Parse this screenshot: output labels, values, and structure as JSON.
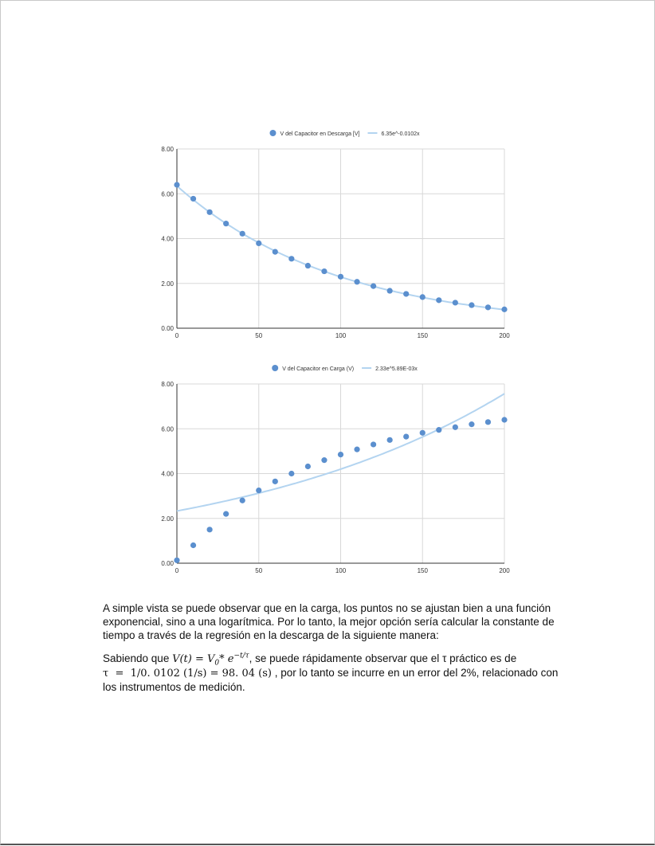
{
  "document": {
    "paragraph_1": "A simple vista se puede observar que en la carga, los puntos no se ajustan bien a una función exponencial, sino a una logarítmica. Por lo tanto, la mejor opción sería calcular la constante de tiempo a través de la regresión en la descarga de la siguiente manera:",
    "paragraph_2": {
      "intro": "Sabiendo que ",
      "formula_lhs": "V(t)",
      "formula_eq": " = ",
      "formula_v": "V",
      "formula_v_sub": "0",
      "formula_mul": "* e",
      "formula_exp": "−t/τ",
      "after_formula": ", se puede rápidamente observar que el ",
      "tau_symbol": "τ",
      "after_tau": " práctico es de",
      "calc": "τ  =  1/0. 0102 (1/s) = 98. 04 (s)",
      "conclusion": " , por lo tanto se incurre en un error del 2%, relacionado con los instrumentos de medición."
    }
  },
  "chart_data": [
    {
      "type": "scatter",
      "legend_position": "top",
      "grid": true,
      "xlim": [
        0,
        200
      ],
      "ylim": [
        0,
        8
      ],
      "x_ticks": [
        "0",
        "50",
        "100",
        "150",
        "200"
      ],
      "y_ticks": [
        "0.00",
        "2.00",
        "4.00",
        "6.00",
        "8.00"
      ],
      "series": [
        {
          "name": "V del Capacitor en Descarga [V]",
          "color": "#5b8fce",
          "x": [
            0,
            10,
            20,
            30,
            40,
            50,
            60,
            70,
            80,
            90,
            100,
            110,
            120,
            130,
            140,
            150,
            160,
            170,
            180,
            190,
            200
          ],
          "y": [
            6.4,
            5.78,
            5.18,
            4.67,
            4.22,
            3.79,
            3.41,
            3.1,
            2.79,
            2.54,
            2.3,
            2.07,
            1.88,
            1.67,
            1.53,
            1.39,
            1.25,
            1.14,
            1.03,
            0.93,
            0.84
          ]
        }
      ],
      "trendline": {
        "label": "6.35e^-0.0102x",
        "a": 6.35,
        "b": -0.0102,
        "color": "#b3d4f0"
      }
    },
    {
      "type": "scatter",
      "legend_position": "top",
      "grid": true,
      "xlim": [
        0,
        200
      ],
      "ylim": [
        0,
        8
      ],
      "x_ticks": [
        "0",
        "50",
        "100",
        "150",
        "200"
      ],
      "y_ticks": [
        "0.00",
        "2.00",
        "4.00",
        "6.00",
        "8.00"
      ],
      "series": [
        {
          "name": "V del Capacitor en Carga (V)",
          "color": "#5b8fce",
          "x": [
            0,
            10,
            20,
            30,
            40,
            50,
            60,
            70,
            80,
            90,
            100,
            110,
            120,
            130,
            140,
            150,
            160,
            170,
            180,
            190,
            200
          ],
          "y": [
            0.13,
            0.8,
            1.5,
            2.2,
            2.8,
            3.25,
            3.65,
            4.0,
            4.32,
            4.6,
            4.85,
            5.08,
            5.3,
            5.5,
            5.65,
            5.82,
            5.95,
            6.07,
            6.2,
            6.3,
            6.4
          ]
        }
      ],
      "trendline": {
        "label": "2.33e^5.89E-03x",
        "a": 2.33,
        "b": 0.00589,
        "color": "#b3d4f0"
      }
    }
  ]
}
